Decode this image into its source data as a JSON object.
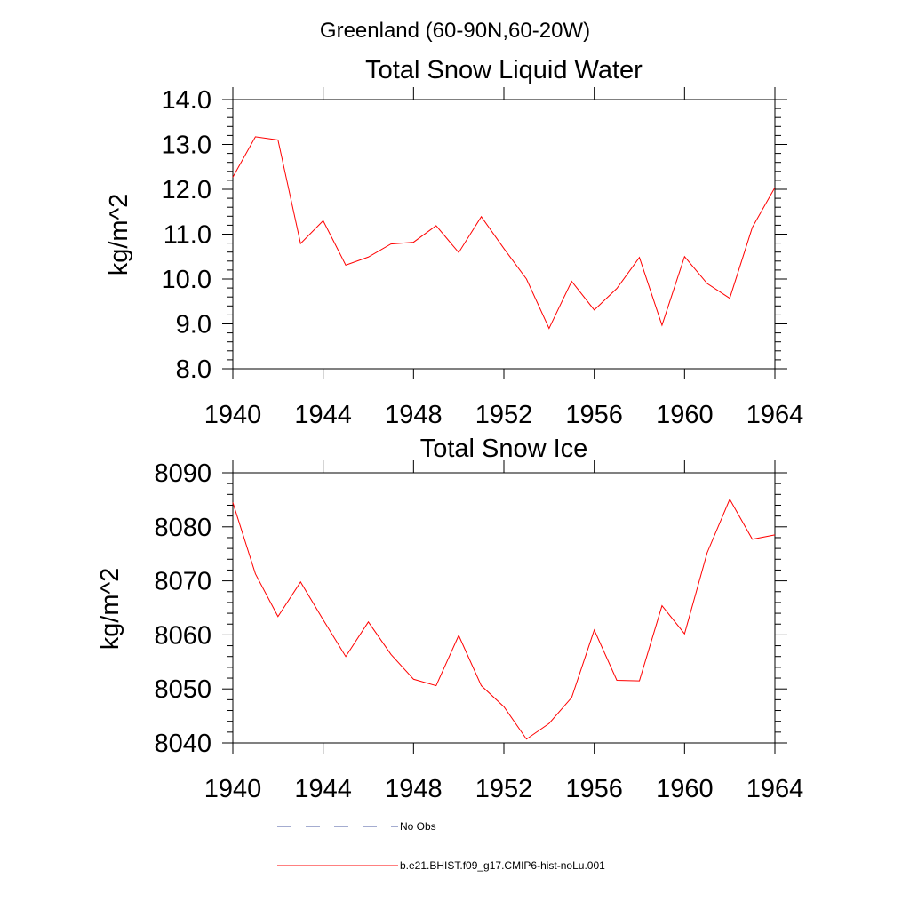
{
  "figure": {
    "title": "Greenland (60-90N,60-20W)"
  },
  "colors": {
    "series": "#ff0000",
    "axis": "#000000",
    "no_obs": "#4a5aa0"
  },
  "chart_data": [
    {
      "type": "line",
      "title": "Total Snow Liquid Water",
      "xlabel": "",
      "ylabel": "kg/m^2",
      "xlim": [
        1940,
        1964
      ],
      "ylim": [
        8.0,
        14.0
      ],
      "xticks": [
        "1940",
        "1944",
        "1948",
        "1952",
        "1956",
        "1960",
        "1964"
      ],
      "yticks": [
        "8.0",
        "9.0",
        "10.0",
        "11.0",
        "12.0",
        "13.0",
        "14.0"
      ],
      "series": [
        {
          "name": "b.e21.BHIST.f09_g17.CMIP6-hist-noLu.001",
          "x": [
            1940,
            1941,
            1942,
            1943,
            1944,
            1945,
            1946,
            1947,
            1948,
            1949,
            1950,
            1951,
            1952,
            1953,
            1954,
            1955,
            1956,
            1957,
            1958,
            1959,
            1960,
            1961,
            1962,
            1963,
            1964
          ],
          "values": [
            12.27,
            13.17,
            13.1,
            10.79,
            11.3,
            10.31,
            10.49,
            10.78,
            10.82,
            11.19,
            10.59,
            11.39,
            10.68,
            10.0,
            8.9,
            9.95,
            9.31,
            9.79,
            10.48,
            8.97,
            10.5,
            9.9,
            9.57,
            11.15,
            12.04
          ]
        }
      ]
    },
    {
      "type": "line",
      "title": "Total Snow Ice",
      "xlabel": "",
      "ylabel": "kg/m^2",
      "xlim": [
        1940,
        1964
      ],
      "ylim": [
        8040,
        8090
      ],
      "xticks": [
        "1940",
        "1944",
        "1948",
        "1952",
        "1956",
        "1960",
        "1964"
      ],
      "yticks": [
        "8040",
        "8050",
        "8060",
        "8070",
        "8080",
        "8090"
      ],
      "series": [
        {
          "name": "b.e21.BHIST.f09_g17.CMIP6-hist-noLu.001",
          "x": [
            1940,
            1941,
            1942,
            1943,
            1944,
            1945,
            1946,
            1947,
            1948,
            1949,
            1950,
            1951,
            1952,
            1953,
            1954,
            1955,
            1956,
            1957,
            1958,
            1959,
            1960,
            1961,
            1962,
            1963,
            1964
          ],
          "values": [
            8084.5,
            8071.3,
            8063.4,
            8069.8,
            8062.8,
            8056.0,
            8062.4,
            8056.4,
            8051.8,
            8050.6,
            8059.9,
            8050.6,
            8046.7,
            8040.7,
            8043.6,
            8048.4,
            8060.9,
            8051.6,
            8051.5,
            8065.4,
            8060.2,
            8075.2,
            8085.1,
            8077.7,
            8078.5
          ]
        }
      ]
    }
  ],
  "legend": {
    "items": [
      {
        "label": "No Obs",
        "style": "dashed"
      },
      {
        "label": "b.e21.BHIST.f09_g17.CMIP6-hist-noLu.001",
        "style": "solid"
      }
    ]
  }
}
